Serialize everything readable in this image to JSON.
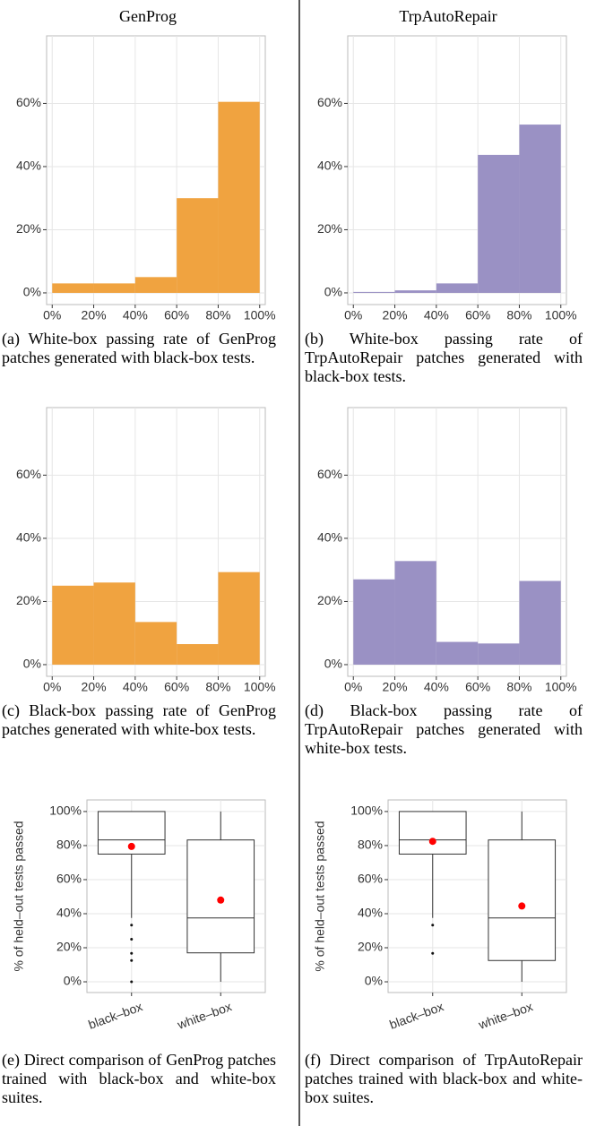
{
  "column_headers": [
    "GenProg",
    "TrpAutoRepair"
  ],
  "chart_data": [
    {
      "type": "histogram",
      "bins": [
        0,
        20,
        40,
        60,
        80,
        100
      ],
      "values": [
        3,
        3,
        5,
        30,
        60.5
      ],
      "color": "#f0a340",
      "xlim": [
        -2.7,
        102.7
      ],
      "ylim": [
        -3.7,
        81.4
      ],
      "xticks": [
        {
          "value": 0,
          "label": "0%"
        },
        {
          "value": 20,
          "label": "20%"
        },
        {
          "value": 40,
          "label": "40%"
        },
        {
          "value": 60,
          "label": "60%"
        },
        {
          "value": 80,
          "label": "80%"
        },
        {
          "value": 100,
          "label": "100%"
        }
      ],
      "yticks": [
        {
          "value": 0,
          "label": "0%"
        },
        {
          "value": 20,
          "label": "20%"
        },
        {
          "value": 40,
          "label": "40%"
        },
        {
          "value": 60,
          "label": "60%"
        }
      ],
      "grid": true,
      "caption": "(a) White-box passing rate of GenProg patches generated with black-box tests."
    },
    {
      "type": "histogram",
      "bins": [
        0,
        20,
        40,
        60,
        80,
        100
      ],
      "values": [
        0.3,
        0.8,
        3,
        43.7,
        53.3
      ],
      "color": "#9a91c4",
      "xlim": [
        -2.7,
        102.7
      ],
      "ylim": [
        -3.7,
        81.4
      ],
      "xticks": [
        {
          "value": 0,
          "label": "0%"
        },
        {
          "value": 20,
          "label": "20%"
        },
        {
          "value": 40,
          "label": "40%"
        },
        {
          "value": 60,
          "label": "60%"
        },
        {
          "value": 80,
          "label": "80%"
        },
        {
          "value": 100,
          "label": "100%"
        }
      ],
      "yticks": [
        {
          "value": 0,
          "label": "0%"
        },
        {
          "value": 20,
          "label": "20%"
        },
        {
          "value": 40,
          "label": "40%"
        },
        {
          "value": 60,
          "label": "60%"
        }
      ],
      "grid": true,
      "caption": "(b) White-box passing rate of TrpAutoRepair patches generated with black-box tests."
    },
    {
      "type": "histogram",
      "bins": [
        0,
        20,
        40,
        60,
        80,
        100
      ],
      "values": [
        25,
        26,
        13.5,
        6.5,
        29.3
      ],
      "color": "#f0a340",
      "xlim": [
        -2.7,
        102.7
      ],
      "ylim": [
        -3.7,
        81.4
      ],
      "xticks": [
        {
          "value": 0,
          "label": "0%"
        },
        {
          "value": 20,
          "label": "20%"
        },
        {
          "value": 40,
          "label": "40%"
        },
        {
          "value": 60,
          "label": "60%"
        },
        {
          "value": 80,
          "label": "80%"
        },
        {
          "value": 100,
          "label": "100%"
        }
      ],
      "yticks": [
        {
          "value": 0,
          "label": "0%"
        },
        {
          "value": 20,
          "label": "20%"
        },
        {
          "value": 40,
          "label": "40%"
        },
        {
          "value": 60,
          "label": "60%"
        }
      ],
      "grid": true,
      "caption": "(c) Black-box passing rate of GenProg patches generated with white-box tests."
    },
    {
      "type": "histogram",
      "bins": [
        0,
        20,
        40,
        60,
        80,
        100
      ],
      "values": [
        27,
        32.8,
        7.2,
        6.7,
        26.5
      ],
      "color": "#9a91c4",
      "xlim": [
        -2.7,
        102.7
      ],
      "ylim": [
        -3.7,
        81.4
      ],
      "xticks": [
        {
          "value": 0,
          "label": "0%"
        },
        {
          "value": 20,
          "label": "20%"
        },
        {
          "value": 40,
          "label": "40%"
        },
        {
          "value": 60,
          "label": "60%"
        },
        {
          "value": 80,
          "label": "80%"
        },
        {
          "value": 100,
          "label": "100%"
        }
      ],
      "yticks": [
        {
          "value": 0,
          "label": "0%"
        },
        {
          "value": 20,
          "label": "20%"
        },
        {
          "value": 40,
          "label": "40%"
        },
        {
          "value": 60,
          "label": "60%"
        }
      ],
      "grid": true,
      "caption": "(d) Black-box passing rate of TrpAutoRepair patches generated with white-box tests."
    },
    {
      "type": "box",
      "categories": [
        "black–box",
        "white–box"
      ],
      "ylabel": "% of held–out tests passed",
      "mean_color": "#ff0000",
      "boxes": [
        {
          "whisker_low": 37.5,
          "q1": 75,
          "median": 83.3,
          "q3": 100,
          "whisker_high": 100,
          "mean": 79.5,
          "outliers": [
            33.3,
            25,
            16.7,
            12.5,
            0
          ]
        },
        {
          "whisker_low": 0,
          "q1": 17,
          "median": 37.5,
          "q3": 83.3,
          "whisker_high": 100,
          "mean": 48,
          "outliers": []
        }
      ],
      "ylim": [
        -6.3,
        106.8
      ],
      "yticks": [
        {
          "value": 0,
          "label": "0%"
        },
        {
          "value": 20,
          "label": "20%"
        },
        {
          "value": 40,
          "label": "40%"
        },
        {
          "value": 60,
          "label": "60%"
        },
        {
          "value": 80,
          "label": "80%"
        },
        {
          "value": 100,
          "label": "100%"
        }
      ],
      "grid": true,
      "caption": "(e) Direct comparison of GenProg patches trained with black-box and white-box suites."
    },
    {
      "type": "box",
      "categories": [
        "black–box",
        "white–box"
      ],
      "ylabel": "% of held–out tests passed",
      "mean_color": "#ff0000",
      "boxes": [
        {
          "whisker_low": 37.5,
          "q1": 75,
          "median": 83.3,
          "q3": 100,
          "whisker_high": 100,
          "mean": 82.5,
          "outliers": [
            33.3,
            16.7
          ]
        },
        {
          "whisker_low": 0,
          "q1": 12.5,
          "median": 37.5,
          "q3": 83.3,
          "whisker_high": 100,
          "mean": 44.5,
          "outliers": []
        }
      ],
      "ylim": [
        -6.3,
        106.8
      ],
      "yticks": [
        {
          "value": 0,
          "label": "0%"
        },
        {
          "value": 20,
          "label": "20%"
        },
        {
          "value": 40,
          "label": "40%"
        },
        {
          "value": 60,
          "label": "60%"
        },
        {
          "value": 80,
          "label": "80%"
        },
        {
          "value": 100,
          "label": "100%"
        }
      ],
      "grid": true,
      "caption": "(f) Direct comparison of TrpAutoRepair patches trained with black-box and white-box suites."
    }
  ]
}
